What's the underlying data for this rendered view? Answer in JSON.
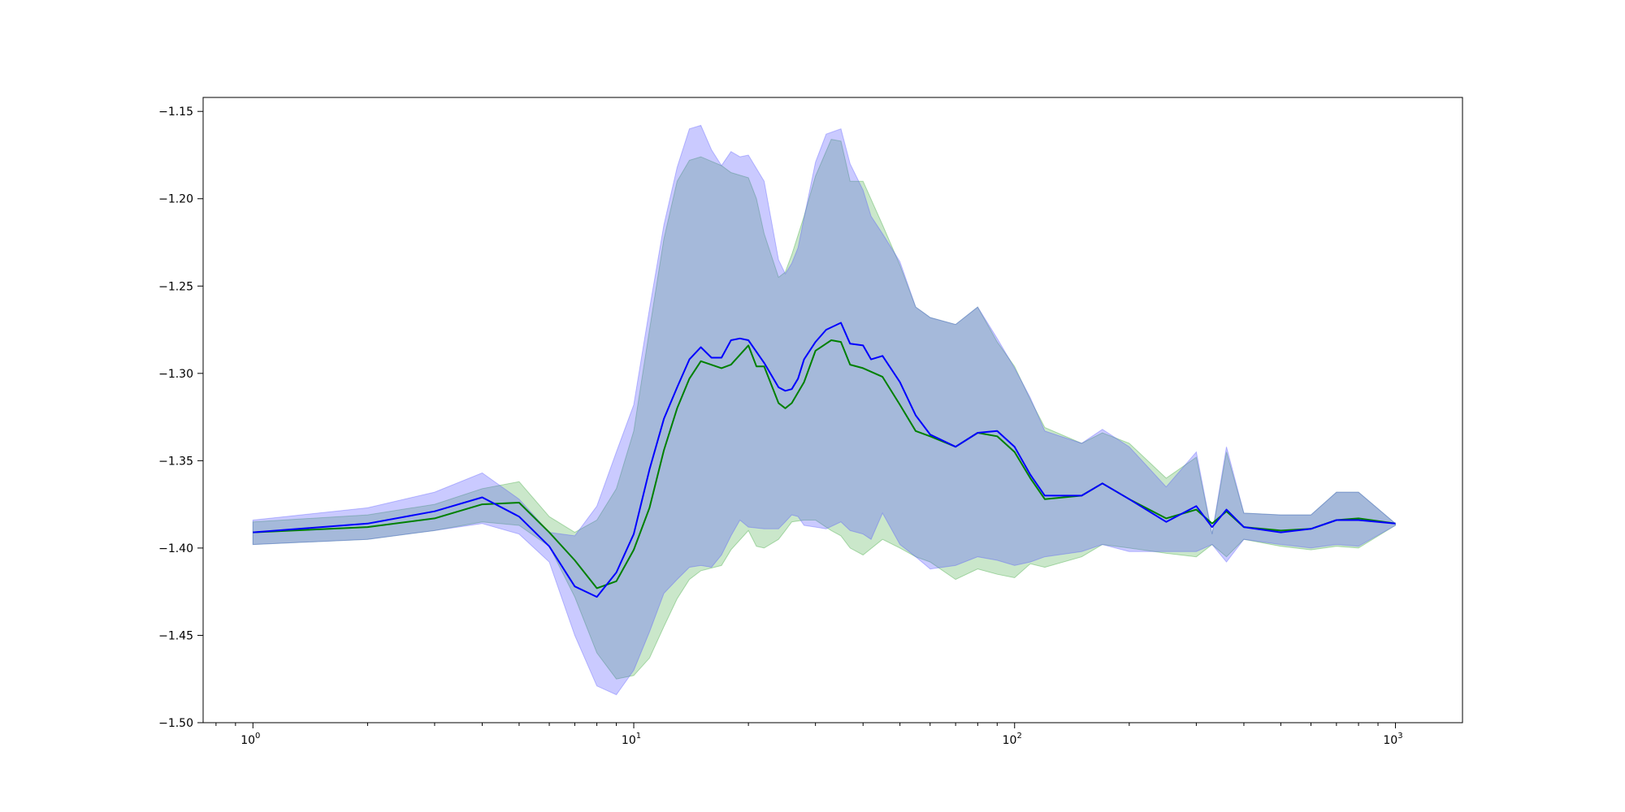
{
  "chart_data": {
    "type": "line",
    "xscale": "log",
    "xlim": [
      0.74,
      1500
    ],
    "ylim": [
      -1.5,
      -1.142
    ],
    "grid": false,
    "yticks": [
      -1.15,
      -1.2,
      -1.25,
      -1.3,
      -1.35,
      -1.4,
      -1.45,
      -1.5
    ],
    "ytick_labels": [
      "−1.15",
      "−1.20",
      "−1.25",
      "−1.30",
      "−1.35",
      "−1.40",
      "−1.45",
      "−1.50"
    ],
    "xticks": [
      {
        "value": 1,
        "base": "10",
        "exp": "0"
      },
      {
        "value": 10,
        "base": "10",
        "exp": "1"
      },
      {
        "value": 100,
        "base": "10",
        "exp": "2"
      },
      {
        "value": 1000,
        "base": "10",
        "exp": "3"
      }
    ],
    "series": [
      {
        "color": "#008000",
        "band_color": "#2ca02c",
        "x": [
          1,
          2,
          3,
          4,
          5,
          6,
          7,
          8,
          9,
          10,
          11,
          12,
          13,
          14,
          15,
          17,
          18,
          20,
          21,
          22,
          24,
          25,
          26,
          28,
          30,
          33,
          35,
          37,
          40,
          45,
          50,
          55,
          60,
          70,
          80,
          90,
          100,
          110,
          120,
          150,
          170,
          200,
          250,
          300,
          330,
          360,
          400,
          500,
          600,
          700,
          800,
          1000
        ],
        "y": [
          -1.391,
          -1.388,
          -1.383,
          -1.375,
          -1.374,
          -1.391,
          -1.407,
          -1.423,
          -1.419,
          -1.401,
          -1.377,
          -1.344,
          -1.32,
          -1.303,
          -1.293,
          -1.297,
          -1.295,
          -1.284,
          -1.296,
          -1.296,
          -1.317,
          -1.32,
          -1.317,
          -1.305,
          -1.287,
          -1.281,
          -1.282,
          -1.295,
          -1.297,
          -1.302,
          -1.318,
          -1.333,
          -1.336,
          -1.342,
          -1.334,
          -1.336,
          -1.345,
          -1.36,
          -1.372,
          -1.37,
          -1.363,
          -1.372,
          -1.383,
          -1.378,
          -1.386,
          -1.379,
          -1.388,
          -1.39,
          -1.389,
          -1.384,
          -1.383,
          -1.386
        ],
        "upper": [
          -1.385,
          -1.381,
          -1.375,
          -1.366,
          -1.362,
          -1.382,
          -1.391,
          -1.384,
          -1.366,
          -1.333,
          -1.275,
          -1.223,
          -1.19,
          -1.178,
          -1.176,
          -1.181,
          -1.185,
          -1.188,
          -1.2,
          -1.22,
          -1.245,
          -1.242,
          -1.232,
          -1.21,
          -1.187,
          -1.166,
          -1.167,
          -1.19,
          -1.19,
          -1.215,
          -1.238,
          -1.262,
          -1.268,
          -1.272,
          -1.262,
          -1.282,
          -1.296,
          -1.315,
          -1.331,
          -1.34,
          -1.334,
          -1.34,
          -1.36,
          -1.348,
          -1.392,
          -1.345,
          -1.38,
          -1.381,
          -1.381,
          -1.368,
          -1.368,
          -1.386
        ],
        "lower": [
          -1.398,
          -1.395,
          -1.39,
          -1.385,
          -1.387,
          -1.399,
          -1.428,
          -1.46,
          -1.475,
          -1.473,
          -1.463,
          -1.445,
          -1.429,
          -1.418,
          -1.413,
          -1.41,
          -1.401,
          -1.39,
          -1.399,
          -1.4,
          -1.395,
          -1.39,
          -1.385,
          -1.384,
          -1.384,
          -1.39,
          -1.393,
          -1.4,
          -1.404,
          -1.395,
          -1.4,
          -1.405,
          -1.408,
          -1.418,
          -1.412,
          -1.415,
          -1.417,
          -1.409,
          -1.411,
          -1.405,
          -1.398,
          -1.4,
          -1.403,
          -1.405,
          -1.398,
          -1.405,
          -1.395,
          -1.399,
          -1.401,
          -1.399,
          -1.4,
          -1.387
        ]
      },
      {
        "color": "#0000ff",
        "band_color": "#5050ff",
        "x": [
          1,
          2,
          3,
          4,
          5,
          6,
          7,
          8,
          9,
          10,
          11,
          12,
          13,
          14,
          15,
          16,
          17,
          18,
          19,
          20,
          22,
          24,
          25,
          26,
          27,
          28,
          30,
          32,
          35,
          37,
          40,
          42,
          45,
          50,
          55,
          60,
          70,
          80,
          90,
          100,
          110,
          120,
          150,
          170,
          200,
          250,
          300,
          330,
          360,
          400,
          500,
          600,
          700,
          800,
          1000
        ],
        "y": [
          -1.391,
          -1.386,
          -1.379,
          -1.371,
          -1.382,
          -1.399,
          -1.422,
          -1.428,
          -1.414,
          -1.392,
          -1.355,
          -1.326,
          -1.308,
          -1.292,
          -1.285,
          -1.291,
          -1.291,
          -1.281,
          -1.28,
          -1.281,
          -1.294,
          -1.308,
          -1.31,
          -1.309,
          -1.303,
          -1.292,
          -1.282,
          -1.275,
          -1.271,
          -1.283,
          -1.284,
          -1.292,
          -1.29,
          -1.305,
          -1.324,
          -1.335,
          -1.342,
          -1.334,
          -1.333,
          -1.342,
          -1.358,
          -1.37,
          -1.37,
          -1.363,
          -1.372,
          -1.385,
          -1.376,
          -1.388,
          -1.378,
          -1.388,
          -1.391,
          -1.389,
          -1.384,
          -1.384,
          -1.386
        ],
        "upper": [
          -1.384,
          -1.377,
          -1.368,
          -1.357,
          -1.372,
          -1.391,
          -1.393,
          -1.376,
          -1.345,
          -1.318,
          -1.263,
          -1.215,
          -1.182,
          -1.16,
          -1.158,
          -1.172,
          -1.181,
          -1.173,
          -1.176,
          -1.175,
          -1.19,
          -1.235,
          -1.243,
          -1.237,
          -1.228,
          -1.211,
          -1.179,
          -1.163,
          -1.16,
          -1.18,
          -1.195,
          -1.21,
          -1.22,
          -1.236,
          -1.262,
          -1.268,
          -1.272,
          -1.262,
          -1.28,
          -1.297,
          -1.314,
          -1.333,
          -1.34,
          -1.332,
          -1.342,
          -1.365,
          -1.345,
          -1.392,
          -1.342,
          -1.38,
          -1.381,
          -1.381,
          -1.368,
          -1.368,
          -1.386
        ],
        "lower": [
          -1.398,
          -1.395,
          -1.39,
          -1.386,
          -1.392,
          -1.408,
          -1.45,
          -1.479,
          -1.484,
          -1.47,
          -1.448,
          -1.426,
          -1.418,
          -1.411,
          -1.41,
          -1.411,
          -1.404,
          -1.393,
          -1.384,
          -1.388,
          -1.389,
          -1.389,
          -1.385,
          -1.381,
          -1.382,
          -1.387,
          -1.388,
          -1.389,
          -1.385,
          -1.39,
          -1.392,
          -1.395,
          -1.38,
          -1.398,
          -1.405,
          -1.412,
          -1.41,
          -1.405,
          -1.407,
          -1.41,
          -1.408,
          -1.405,
          -1.402,
          -1.398,
          -1.402,
          -1.402,
          -1.402,
          -1.398,
          -1.408,
          -1.395,
          -1.398,
          -1.4,
          -1.398,
          -1.399,
          -1.387
        ]
      }
    ]
  }
}
